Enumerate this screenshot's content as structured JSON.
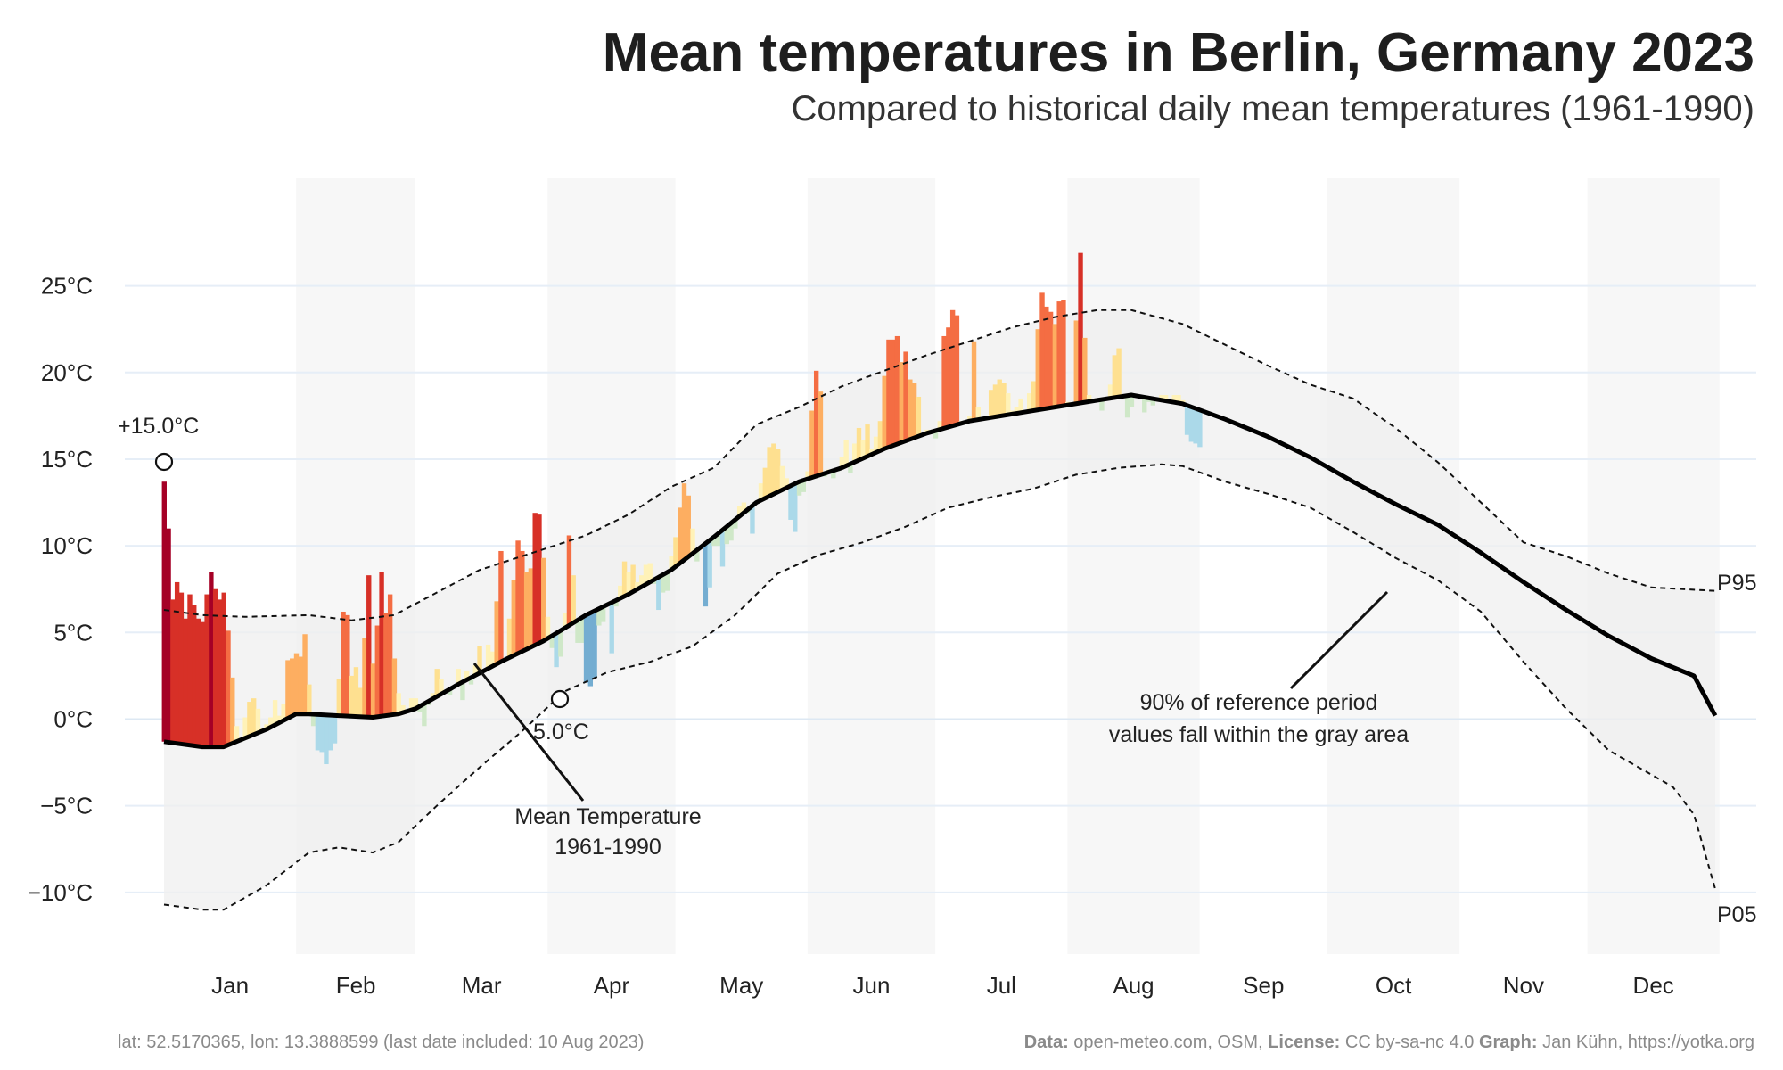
{
  "title": "Mean temperatures in Berlin, Germany 2023",
  "subtitle": "Compared to historical daily mean temperatures (1961-1990)",
  "footer": {
    "location": "lat: 52.5170365, lon: 13.3888599 (last date included: 10 Aug 2023)",
    "data_label": "Data:",
    "data_value": "open-meteo.com, OSM,",
    "license_label": "License:",
    "license_value": "CC by-sa-nc 4.0",
    "graph_label": "Graph:",
    "graph_value": "Jan Kühn, https://yotka.org"
  },
  "annotations": {
    "max_label": "+15.0°C",
    "min_label": "5.0°C",
    "mean_line_label_1": "Mean Temperature",
    "mean_line_label_2": "1961-1990",
    "band_label_1": "90% of reference period",
    "band_label_2": "values fall within the gray area",
    "p95_label": "P95",
    "p05_label": "P05"
  },
  "chart_data": {
    "type": "area",
    "x_unit": "day of year 2023",
    "ylim": [
      -11.5,
      27.5
    ],
    "y_ticks": [
      -10,
      -5,
      0,
      5,
      10,
      15,
      20,
      25
    ],
    "y_tick_labels": [
      "−10°C",
      "−5°C",
      "0°C",
      "5°C",
      "10°C",
      "15°C",
      "20°C",
      "25°C"
    ],
    "months": [
      "Jan",
      "Feb",
      "Mar",
      "Apr",
      "May",
      "Jun",
      "Jul",
      "Aug",
      "Sep",
      "Oct",
      "Nov",
      "Dec"
    ],
    "grid": true,
    "mean_1961_1990": [
      [
        1,
        -1.3
      ],
      [
        10,
        -1.6
      ],
      [
        15,
        -1.6
      ],
      [
        25,
        -0.6
      ],
      [
        32,
        0.3
      ],
      [
        35,
        0.3
      ],
      [
        42,
        0.2
      ],
      [
        50,
        0.1
      ],
      [
        56,
        0.3
      ],
      [
        60,
        0.6
      ],
      [
        70,
        2.0
      ],
      [
        80,
        3.3
      ],
      [
        90,
        4.5
      ],
      [
        100,
        6.0
      ],
      [
        110,
        7.2
      ],
      [
        120,
        8.6
      ],
      [
        130,
        10.5
      ],
      [
        140,
        12.5
      ],
      [
        150,
        13.7
      ],
      [
        160,
        14.5
      ],
      [
        170,
        15.6
      ],
      [
        180,
        16.5
      ],
      [
        190,
        17.2
      ],
      [
        200,
        17.6
      ],
      [
        210,
        18.0
      ],
      [
        220,
        18.4
      ],
      [
        228,
        18.7
      ],
      [
        240,
        18.2
      ],
      [
        250,
        17.3
      ],
      [
        260,
        16.3
      ],
      [
        270,
        15.1
      ],
      [
        280,
        13.7
      ],
      [
        290,
        12.4
      ],
      [
        300,
        11.2
      ],
      [
        310,
        9.6
      ],
      [
        320,
        7.9
      ],
      [
        330,
        6.3
      ],
      [
        340,
        4.8
      ],
      [
        350,
        3.5
      ],
      [
        360,
        2.5
      ],
      [
        365,
        0.2
      ]
    ],
    "p95": [
      [
        1,
        6.3
      ],
      [
        10,
        6.0
      ],
      [
        20,
        5.9
      ],
      [
        35,
        6.0
      ],
      [
        45,
        5.7
      ],
      [
        55,
        6.0
      ],
      [
        65,
        7.3
      ],
      [
        75,
        8.6
      ],
      [
        85,
        9.4
      ],
      [
        100,
        10.6
      ],
      [
        110,
        11.8
      ],
      [
        120,
        13.4
      ],
      [
        130,
        14.5
      ],
      [
        140,
        17.0
      ],
      [
        150,
        18.0
      ],
      [
        160,
        19.2
      ],
      [
        170,
        20.1
      ],
      [
        180,
        21.0
      ],
      [
        190,
        21.8
      ],
      [
        200,
        22.6
      ],
      [
        210,
        23.2
      ],
      [
        220,
        23.6
      ],
      [
        228,
        23.6
      ],
      [
        240,
        22.8
      ],
      [
        250,
        21.6
      ],
      [
        260,
        20.4
      ],
      [
        270,
        19.3
      ],
      [
        280,
        18.5
      ],
      [
        290,
        16.8
      ],
      [
        300,
        14.8
      ],
      [
        310,
        12.5
      ],
      [
        320,
        10.2
      ],
      [
        330,
        9.4
      ],
      [
        340,
        8.4
      ],
      [
        350,
        7.6
      ],
      [
        365,
        7.4
      ]
    ],
    "p05": [
      [
        1,
        -10.7
      ],
      [
        10,
        -11.0
      ],
      [
        15,
        -11.0
      ],
      [
        25,
        -9.6
      ],
      [
        35,
        -7.7
      ],
      [
        42,
        -7.4
      ],
      [
        50,
        -7.7
      ],
      [
        56,
        -7.1
      ],
      [
        65,
        -5.0
      ],
      [
        75,
        -2.8
      ],
      [
        85,
        -0.7
      ],
      [
        95,
        1.6
      ],
      [
        105,
        2.7
      ],
      [
        115,
        3.3
      ],
      [
        125,
        4.2
      ],
      [
        135,
        6.0
      ],
      [
        145,
        8.4
      ],
      [
        155,
        9.5
      ],
      [
        165,
        10.2
      ],
      [
        175,
        11.1
      ],
      [
        185,
        12.2
      ],
      [
        195,
        12.8
      ],
      [
        205,
        13.3
      ],
      [
        215,
        14.1
      ],
      [
        225,
        14.5
      ],
      [
        235,
        14.7
      ],
      [
        240,
        14.6
      ],
      [
        250,
        13.7
      ],
      [
        260,
        13.0
      ],
      [
        270,
        12.2
      ],
      [
        280,
        10.8
      ],
      [
        290,
        9.3
      ],
      [
        300,
        8.0
      ],
      [
        310,
        6.2
      ],
      [
        320,
        3.3
      ],
      [
        330,
        0.6
      ],
      [
        340,
        -1.8
      ],
      [
        350,
        -3.2
      ],
      [
        355,
        -3.9
      ],
      [
        360,
        -5.5
      ],
      [
        365,
        -9.8
      ]
    ],
    "observed_2023": [
      [
        1,
        13.7
      ],
      [
        2,
        11.0
      ],
      [
        3,
        6.9
      ],
      [
        4,
        7.9
      ],
      [
        5,
        7.3
      ],
      [
        6,
        5.8
      ],
      [
        7,
        7.2
      ],
      [
        8,
        6.6
      ],
      [
        9,
        5.8
      ],
      [
        10,
        5.6
      ],
      [
        11,
        7.2
      ],
      [
        12,
        8.5
      ],
      [
        13,
        7.5
      ],
      [
        14,
        6.9
      ],
      [
        15,
        7.3
      ],
      [
        16,
        5.1
      ],
      [
        17,
        2.4
      ],
      [
        18,
        -0.4
      ],
      [
        19,
        -1.3
      ],
      [
        20,
        0.1
      ],
      [
        21,
        1.0
      ],
      [
        22,
        1.2
      ],
      [
        23,
        0.6
      ],
      [
        24,
        -0.5
      ],
      [
        25,
        -0.3
      ],
      [
        26,
        0.1
      ],
      [
        27,
        1.1
      ],
      [
        28,
        0.2
      ],
      [
        29,
        0.9
      ],
      [
        30,
        3.4
      ],
      [
        31,
        3.5
      ],
      [
        32,
        3.8
      ],
      [
        33,
        3.6
      ],
      [
        34,
        4.9
      ],
      [
        35,
        2.0
      ],
      [
        36,
        -0.4
      ],
      [
        37,
        -1.8
      ],
      [
        38,
        -1.9
      ],
      [
        39,
        -2.6
      ],
      [
        40,
        -1.8
      ],
      [
        41,
        -1.4
      ],
      [
        42,
        2.3
      ],
      [
        43,
        6.2
      ],
      [
        44,
        6.0
      ],
      [
        45,
        2.5
      ],
      [
        46,
        3.0
      ],
      [
        47,
        1.8
      ],
      [
        48,
        4.7
      ],
      [
        49,
        8.3
      ],
      [
        50,
        3.2
      ],
      [
        51,
        5.4
      ],
      [
        52,
        8.5
      ],
      [
        53,
        6.1
      ],
      [
        54,
        7.2
      ],
      [
        55,
        3.5
      ],
      [
        56,
        1.5
      ],
      [
        57,
        0.8
      ],
      [
        58,
        0.5
      ],
      [
        59,
        1.2
      ],
      [
        60,
        1.2
      ],
      [
        61,
        0.4
      ],
      [
        62,
        -0.4
      ],
      [
        63,
        0.8
      ],
      [
        64,
        1.5
      ],
      [
        65,
        2.9
      ],
      [
        66,
        2.3
      ],
      [
        67,
        1.7
      ],
      [
        68,
        1.4
      ],
      [
        69,
        1.8
      ],
      [
        70,
        2.9
      ],
      [
        71,
        1.1
      ],
      [
        72,
        2.8
      ],
      [
        73,
        2.0
      ],
      [
        74,
        3.1
      ],
      [
        75,
        4.2
      ],
      [
        76,
        2.8
      ],
      [
        77,
        4.3
      ],
      [
        78,
        3.9
      ],
      [
        79,
        6.8
      ],
      [
        80,
        9.7
      ],
      [
        81,
        3.5
      ],
      [
        82,
        5.8
      ],
      [
        83,
        8.0
      ],
      [
        84,
        10.3
      ],
      [
        85,
        9.7
      ],
      [
        86,
        8.5
      ],
      [
        87,
        8.7
      ],
      [
        88,
        11.9
      ],
      [
        89,
        11.8
      ],
      [
        90,
        9.3
      ],
      [
        91,
        5.9
      ],
      [
        92,
        4.1
      ],
      [
        93,
        3.0
      ],
      [
        94,
        3.6
      ],
      [
        95,
        6.1
      ],
      [
        96,
        10.6
      ],
      [
        97,
        8.3
      ],
      [
        98,
        4.4
      ],
      [
        99,
        4.4
      ],
      [
        100,
        2.1
      ],
      [
        101,
        1.9
      ],
      [
        102,
        2.4
      ],
      [
        103,
        5.4
      ],
      [
        104,
        5.6
      ],
      [
        105,
        6.6
      ],
      [
        106,
        3.8
      ],
      [
        107,
        6.5
      ],
      [
        108,
        7.7
      ],
      [
        109,
        9.1
      ],
      [
        110,
        8.5
      ],
      [
        111,
        8.9
      ],
      [
        112,
        7.9
      ],
      [
        113,
        8.3
      ],
      [
        114,
        8.9
      ],
      [
        115,
        9.0
      ],
      [
        116,
        7.8
      ],
      [
        117,
        6.3
      ],
      [
        118,
        7.3
      ],
      [
        119,
        7.4
      ],
      [
        120,
        9.4
      ],
      [
        121,
        10.5
      ],
      [
        122,
        12.2
      ],
      [
        123,
        13.6
      ],
      [
        124,
        12.9
      ],
      [
        125,
        11.0
      ],
      [
        126,
        9.1
      ],
      [
        127,
        10.0
      ],
      [
        128,
        6.5
      ],
      [
        129,
        7.6
      ],
      [
        130,
        10.0
      ],
      [
        131,
        10.0
      ],
      [
        132,
        8.8
      ],
      [
        133,
        10.1
      ],
      [
        134,
        10.3
      ],
      [
        135,
        11.0
      ],
      [
        136,
        12.3
      ],
      [
        137,
        12.5
      ],
      [
        138,
        11.9
      ],
      [
        139,
        10.7
      ],
      [
        140,
        12.5
      ],
      [
        141,
        13.6
      ],
      [
        142,
        14.5
      ],
      [
        143,
        15.7
      ],
      [
        144,
        15.9
      ],
      [
        145,
        15.6
      ],
      [
        146,
        14.6
      ],
      [
        147,
        13.9
      ],
      [
        148,
        11.5
      ],
      [
        149,
        10.8
      ],
      [
        150,
        12.9
      ],
      [
        151,
        13.1
      ],
      [
        152,
        14.3
      ],
      [
        153,
        17.8
      ],
      [
        154,
        20.1
      ],
      [
        155,
        18.9
      ],
      [
        156,
        14.0
      ],
      [
        157,
        14.4
      ],
      [
        158,
        13.9
      ],
      [
        159,
        14.3
      ],
      [
        160,
        15.1
      ],
      [
        161,
        16.1
      ],
      [
        162,
        14.2
      ],
      [
        163,
        15.9
      ],
      [
        164,
        16.8
      ],
      [
        165,
        16.1
      ],
      [
        166,
        17.0
      ],
      [
        167,
        15.6
      ],
      [
        168,
        16.3
      ],
      [
        169,
        17.2
      ],
      [
        170,
        19.8
      ],
      [
        171,
        21.9
      ],
      [
        172,
        21.9
      ],
      [
        173,
        22.1
      ],
      [
        174,
        20.6
      ],
      [
        175,
        21.2
      ],
      [
        176,
        19.6
      ],
      [
        177,
        19.4
      ],
      [
        178,
        18.6
      ],
      [
        179,
        16.4
      ],
      [
        180,
        16.7
      ],
      [
        181,
        16.5
      ],
      [
        182,
        16.2
      ],
      [
        183,
        17.2
      ],
      [
        184,
        22.1
      ],
      [
        185,
        22.6
      ],
      [
        186,
        23.6
      ],
      [
        187,
        23.3
      ],
      [
        188,
        17.2
      ],
      [
        189,
        17.0
      ],
      [
        190,
        17.5
      ],
      [
        191,
        21.8
      ],
      [
        192,
        18.0
      ],
      [
        193,
        17.3
      ],
      [
        194,
        17.5
      ],
      [
        195,
        19.0
      ],
      [
        196,
        19.3
      ],
      [
        197,
        19.6
      ],
      [
        198,
        19.4
      ],
      [
        199,
        18.8
      ],
      [
        200,
        17.8
      ],
      [
        201,
        18.0
      ],
      [
        202,
        18.5
      ],
      [
        203,
        17.7
      ],
      [
        204,
        18.8
      ],
      [
        205,
        19.5
      ],
      [
        206,
        22.5
      ],
      [
        207,
        24.6
      ],
      [
        208,
        23.8
      ],
      [
        209,
        23.5
      ],
      [
        210,
        22.8
      ],
      [
        211,
        24.1
      ],
      [
        212,
        24.2
      ],
      [
        213,
        18.3
      ],
      [
        214,
        18.1
      ],
      [
        215,
        23.0
      ],
      [
        216,
        26.9
      ],
      [
        217,
        22.0
      ],
      [
        218,
        18.7
      ],
      [
        219,
        18.5
      ],
      [
        220,
        18.5
      ],
      [
        221,
        17.8
      ],
      [
        222,
        18.4
      ],
      [
        223,
        19.3
      ],
      [
        224,
        21.0
      ],
      [
        225,
        21.4
      ],
      [
        226,
        18.6
      ],
      [
        227,
        17.4
      ],
      [
        228,
        18.0
      ],
      [
        229,
        18.6
      ],
      [
        230,
        18.6
      ],
      [
        231,
        17.7
      ],
      [
        232,
        18.3
      ],
      [
        233,
        18.1
      ],
      [
        234,
        18.4
      ],
      [
        235,
        18.7
      ],
      [
        236,
        18.7
      ],
      [
        237,
        18.5
      ],
      [
        238,
        18.7
      ],
      [
        239,
        18.7
      ],
      [
        240,
        18.4
      ],
      [
        241,
        16.4
      ],
      [
        242,
        16.0
      ],
      [
        243,
        15.9
      ],
      [
        244,
        15.7
      ]
    ]
  }
}
